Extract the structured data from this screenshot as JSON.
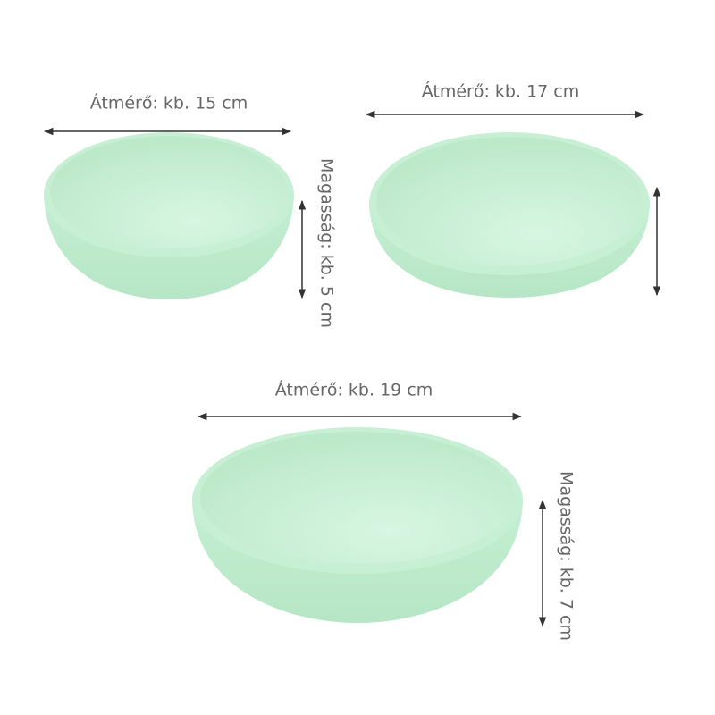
{
  "bowls": [
    {
      "diameter": "Átmérő: kb. 15 cm",
      "height": "Magasság: kb. 5 cm"
    },
    {
      "diameter": "Átmérő: kb. 17 cm"
    },
    {
      "diameter": "Átmérő: kb. 19 cm",
      "height": "Magasság: kb. 7 cm"
    }
  ]
}
